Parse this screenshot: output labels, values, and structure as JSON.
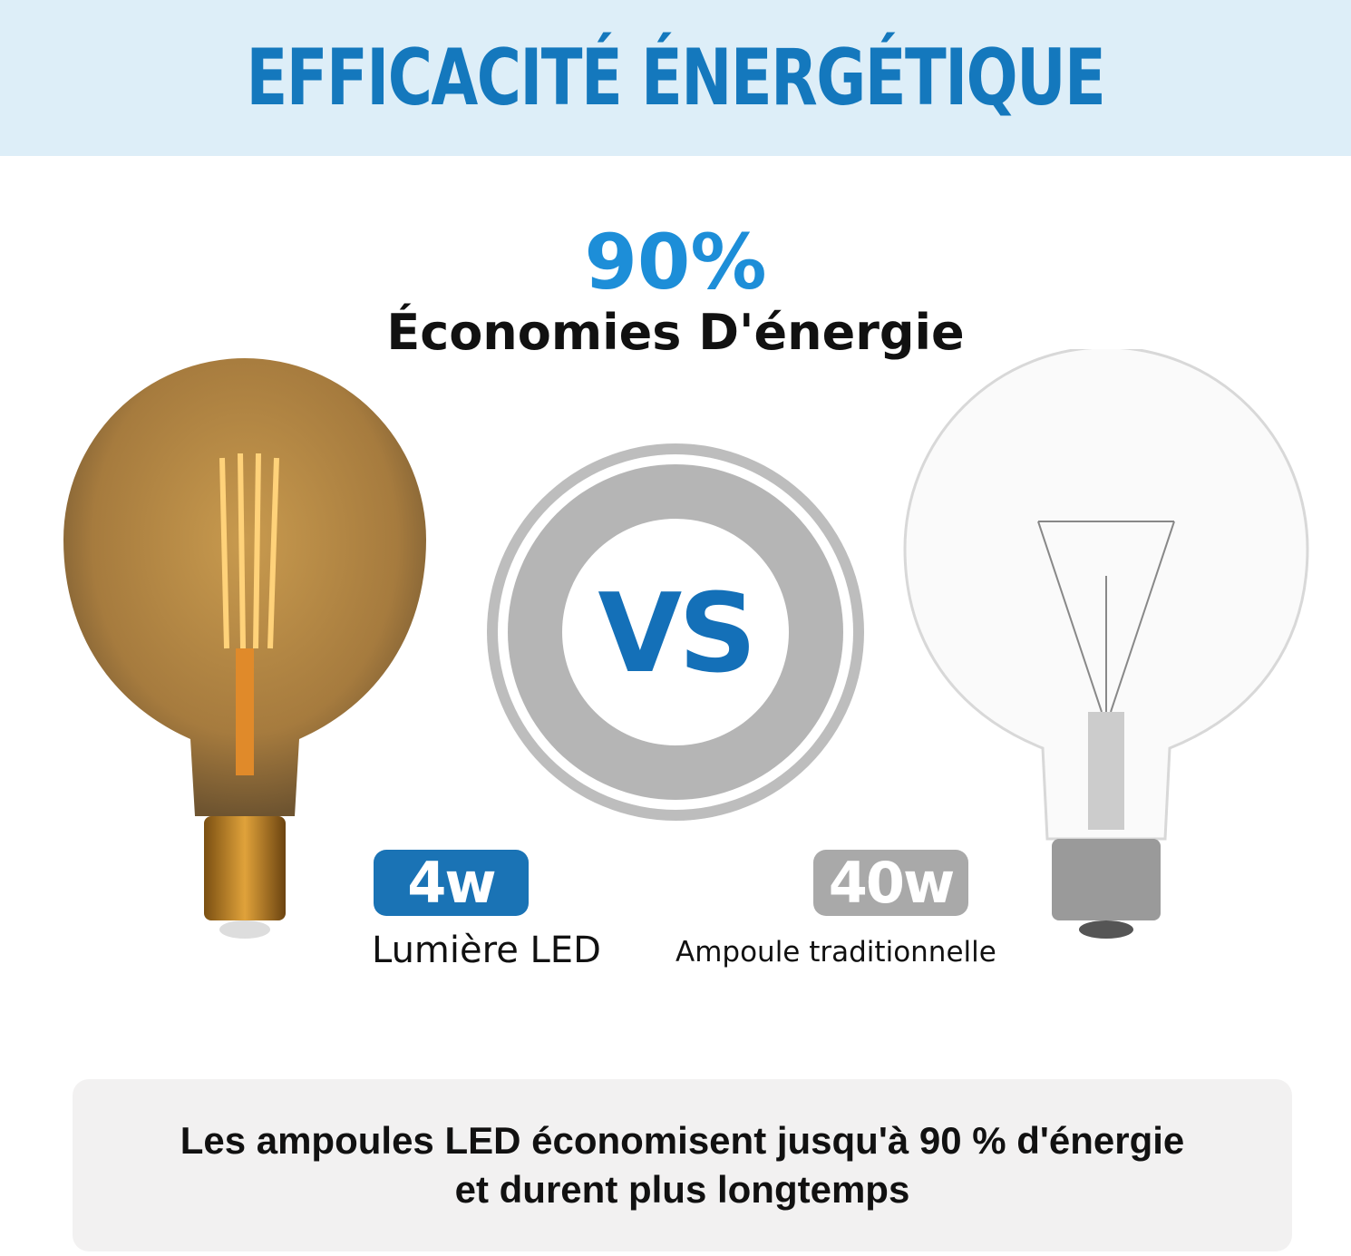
{
  "header": {
    "title": "EFFICACITÉ ÉNERGÉTIQUE"
  },
  "headline": {
    "percent": "90%",
    "subtitle": "Économies D'énergie"
  },
  "versus": {
    "label": "VS"
  },
  "led": {
    "wattage": "4w",
    "label": "Lumière LED",
    "badge_color": "#1a73b5"
  },
  "traditional": {
    "wattage": "40w",
    "label": "Ampoule traditionnelle",
    "badge_color": "#a9a9a9"
  },
  "footer": {
    "line1": "Les ampoules LED économisent jusqu'à 90 % d'énergie",
    "line2": "et durent plus longtemps"
  },
  "colors": {
    "accent": "#1478bd",
    "header_bg": "#ddeef8"
  }
}
